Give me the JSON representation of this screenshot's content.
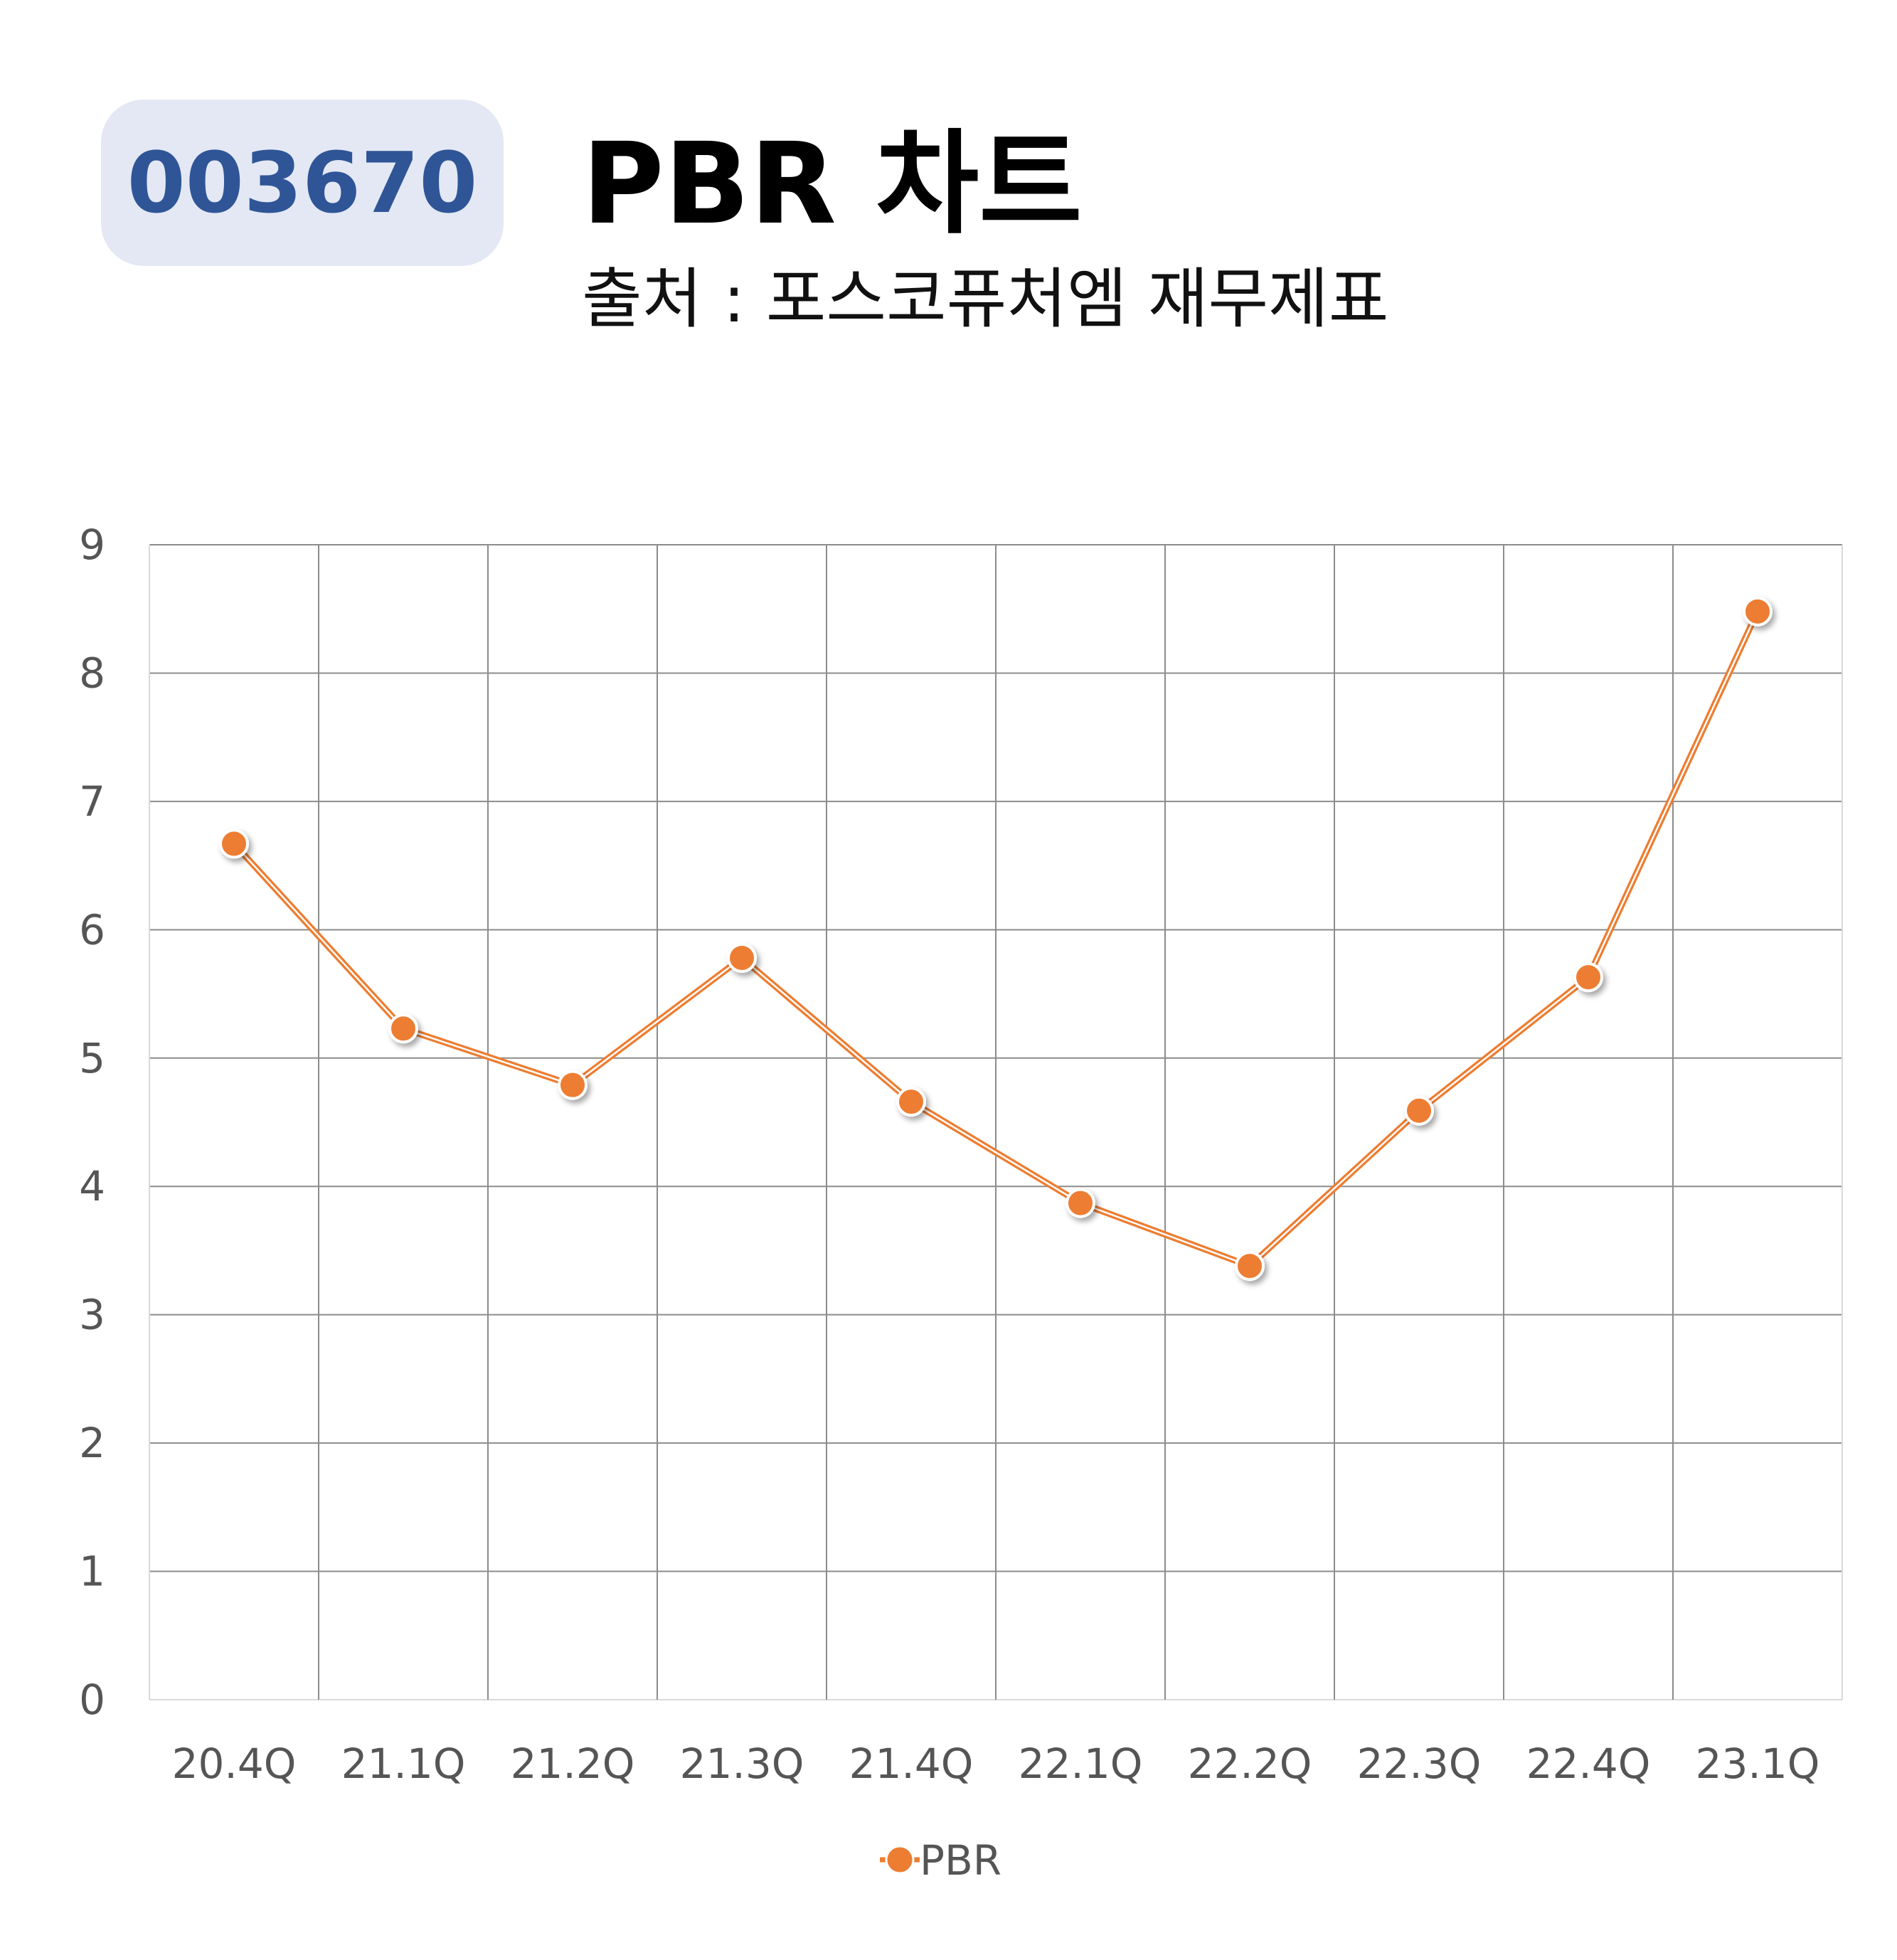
{
  "header": {
    "code_badge": "003670",
    "title": "PBR 차트",
    "subtitle": "출처 : 포스코퓨처엠 재무제표"
  },
  "chart_data": {
    "type": "line",
    "categories": [
      "20.4Q",
      "21.1Q",
      "21.2Q",
      "21.3Q",
      "21.4Q",
      "22.1Q",
      "22.2Q",
      "22.3Q",
      "22.4Q",
      "23.1Q"
    ],
    "series": [
      {
        "name": "PBR",
        "color": "#ed7d31",
        "values": [
          6.67,
          5.23,
          4.79,
          5.78,
          4.66,
          3.87,
          3.38,
          4.59,
          5.63,
          8.48
        ]
      }
    ],
    "yticks": [
      "0",
      "1",
      "2",
      "3",
      "4",
      "5",
      "6",
      "7",
      "8",
      "9"
    ],
    "ylim": [
      0,
      9
    ],
    "grid": true,
    "legend_position": "bottom-center"
  }
}
